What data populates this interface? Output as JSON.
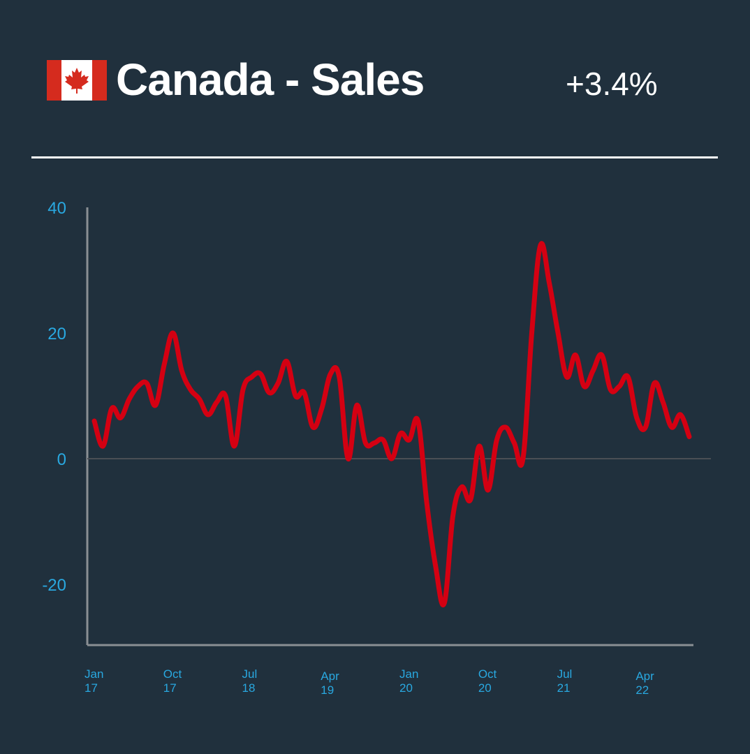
{
  "header": {
    "title": "Canada - Sales",
    "change": "+3.4%"
  },
  "flag": {
    "icon": "canada-flag-icon",
    "red": "#d52b1e",
    "white": "#ffffff"
  },
  "colors": {
    "background": "#20303d",
    "line": "#d40012",
    "tick_label": "#29a8e0",
    "axis": "#8a8f94",
    "zero_line": "#4a4f55"
  },
  "chart_data": {
    "type": "line",
    "title": "",
    "xlabel": "",
    "ylabel": "",
    "ylim": [
      -30,
      40
    ],
    "yticks": [
      "40",
      "20",
      "0",
      "-20"
    ],
    "xticks": [
      {
        "top": "Jan",
        "bottom": "17",
        "index": 0
      },
      {
        "top": "Oct",
        "bottom": "17",
        "index": 9
      },
      {
        "top": "Jul",
        "bottom": "18",
        "index": 18
      },
      {
        "top": "Apr",
        "bottom": "19",
        "index": 27
      },
      {
        "top": "Jan",
        "bottom": "20",
        "index": 36
      },
      {
        "top": "Oct",
        "bottom": "20",
        "index": 45
      },
      {
        "top": "Jul",
        "bottom": "21",
        "index": 54
      },
      {
        "top": "Apr",
        "bottom": "22",
        "index": 63
      }
    ],
    "grid": false,
    "legend": "none",
    "series": [
      {
        "values": [
          6,
          2,
          8,
          6.5,
          9.5,
          11.5,
          12,
          8.5,
          15,
          20,
          14,
          11,
          9.5,
          7,
          9,
          10,
          2,
          11,
          13,
          13.5,
          10.5,
          12,
          15.5,
          10,
          10.5,
          5,
          8,
          13.5,
          13,
          0,
          8.5,
          2.5,
          2.5,
          3,
          0,
          4,
          3,
          6,
          -7,
          -17,
          -23,
          -9,
          -4.5,
          -6.5,
          2,
          -5,
          3,
          5,
          2.5,
          0,
          20,
          34,
          28,
          20,
          13,
          16.5,
          11.5,
          14,
          16.5,
          11,
          11.5,
          13,
          6.5,
          5,
          12,
          9,
          5,
          7,
          3.5
        ]
      }
    ]
  }
}
